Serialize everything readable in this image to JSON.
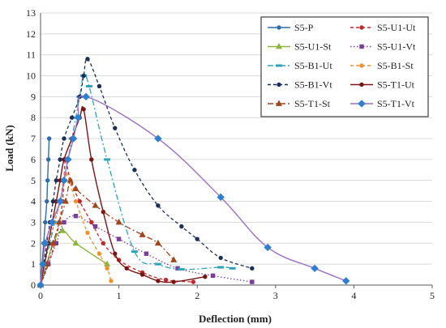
{
  "chart_data": {
    "type": "line",
    "xlabel": "Deflection (mm)",
    "ylabel": "Load (kN)",
    "xlim": [
      0,
      5
    ],
    "ylim": [
      0,
      13
    ],
    "x_ticks": [
      "0",
      "1",
      "2",
      "3",
      "4",
      "5"
    ],
    "y_ticks": [
      "0",
      "1",
      "2",
      "3",
      "4",
      "5",
      "6",
      "7",
      "8",
      "9",
      "10",
      "11",
      "12",
      "13"
    ],
    "grid": "horizontal",
    "legend_position": "top-right",
    "series": [
      {
        "name": "S5-P",
        "color": "#2e6ca6",
        "dash": "solid",
        "marker": "circle",
        "points": [
          [
            0,
            0
          ],
          [
            0.02,
            1
          ],
          [
            0.04,
            2
          ],
          [
            0.06,
            3
          ],
          [
            0.08,
            4
          ],
          [
            0.09,
            5
          ],
          [
            0.1,
            6
          ],
          [
            0.11,
            7
          ]
        ]
      },
      {
        "name": "S5-U1-Ut",
        "color": "#c0282a",
        "dash": "dash",
        "marker": "circle",
        "points": [
          [
            0,
            0
          ],
          [
            0.1,
            1
          ],
          [
            0.18,
            2
          ],
          [
            0.24,
            3
          ],
          [
            0.28,
            4
          ],
          [
            0.3,
            5
          ],
          [
            0.32,
            6
          ],
          [
            0.38,
            5
          ],
          [
            0.5,
            4
          ],
          [
            0.65,
            3
          ],
          [
            0.8,
            2
          ],
          [
            1.0,
            1.2
          ],
          [
            1.3,
            0.6
          ],
          [
            1.6,
            0.25
          ],
          [
            1.95,
            0.15
          ]
        ]
      },
      {
        "name": "S5-U1-St",
        "color": "#8db53c",
        "dash": "solid",
        "marker": "triangle",
        "points": [
          [
            0,
            0
          ],
          [
            0.08,
            1
          ],
          [
            0.16,
            2
          ],
          [
            0.28,
            2.6
          ],
          [
            0.45,
            2.0
          ],
          [
            0.85,
            1.0
          ]
        ]
      },
      {
        "name": "S5-U1-Vt",
        "color": "#7a3e98",
        "dash": "dot",
        "marker": "square",
        "points": [
          [
            0,
            0
          ],
          [
            0.1,
            1
          ],
          [
            0.2,
            2
          ],
          [
            0.3,
            3
          ],
          [
            0.45,
            3.3
          ],
          [
            0.7,
            2.8
          ],
          [
            1.0,
            2.2
          ],
          [
            1.35,
            1.5
          ],
          [
            1.75,
            0.8
          ],
          [
            2.2,
            0.45
          ],
          [
            2.7,
            0.15
          ]
        ]
      },
      {
        "name": "S5-B1-Ut",
        "color": "#2ea3b8",
        "dash": "dashdot",
        "marker": "dash",
        "points": [
          [
            0,
            0
          ],
          [
            0.05,
            1
          ],
          [
            0.12,
            2
          ],
          [
            0.18,
            3
          ],
          [
            0.25,
            4
          ],
          [
            0.3,
            5
          ],
          [
            0.35,
            6
          ],
          [
            0.4,
            7
          ],
          [
            0.45,
            8
          ],
          [
            0.5,
            9
          ],
          [
            0.55,
            10
          ],
          [
            0.62,
            9.5
          ],
          [
            0.85,
            6
          ],
          [
            1.2,
            1.6
          ],
          [
            1.5,
            1.0
          ],
          [
            1.8,
            0.75
          ],
          [
            2.3,
            0.85
          ],
          [
            2.45,
            0.8
          ]
        ]
      },
      {
        "name": "S5-B1-St",
        "color": "#f0912f",
        "dash": "dash",
        "marker": "circle",
        "points": [
          [
            0,
            0
          ],
          [
            0.05,
            1
          ],
          [
            0.1,
            2
          ],
          [
            0.18,
            3
          ],
          [
            0.25,
            4
          ],
          [
            0.32,
            5.3
          ],
          [
            0.45,
            4
          ],
          [
            0.6,
            2.5
          ],
          [
            0.75,
            1.5
          ],
          [
            0.85,
            0.8
          ],
          [
            0.9,
            0.2
          ]
        ]
      },
      {
        "name": "S5-B1-Vt",
        "color": "#1a2f5a",
        "dash": "dash",
        "marker": "circle",
        "points": [
          [
            0,
            0
          ],
          [
            0.04,
            1
          ],
          [
            0.08,
            2
          ],
          [
            0.12,
            3
          ],
          [
            0.16,
            4
          ],
          [
            0.2,
            5
          ],
          [
            0.25,
            6
          ],
          [
            0.3,
            7
          ],
          [
            0.4,
            8
          ],
          [
            0.5,
            9
          ],
          [
            0.55,
            10
          ],
          [
            0.6,
            10.8
          ],
          [
            0.75,
            9.5
          ],
          [
            0.95,
            7.5
          ],
          [
            1.2,
            5.5
          ],
          [
            1.5,
            3.8
          ],
          [
            1.8,
            2.8
          ],
          [
            2.0,
            2.2
          ],
          [
            2.3,
            1.3
          ],
          [
            2.7,
            0.8
          ]
        ]
      },
      {
        "name": "S5-T1-Ut",
        "color": "#7a1412",
        "dash": "solid",
        "marker": "circle",
        "points": [
          [
            0,
            0
          ],
          [
            0.05,
            1
          ],
          [
            0.1,
            2
          ],
          [
            0.15,
            3
          ],
          [
            0.2,
            4
          ],
          [
            0.25,
            5
          ],
          [
            0.3,
            6
          ],
          [
            0.4,
            7
          ],
          [
            0.5,
            8
          ],
          [
            0.55,
            8.4
          ],
          [
            0.65,
            6.0
          ],
          [
            0.8,
            3.5
          ],
          [
            0.95,
            1.5
          ],
          [
            1.1,
            0.8
          ],
          [
            1.3,
            0.5
          ],
          [
            1.5,
            0.2
          ],
          [
            1.7,
            0.15
          ],
          [
            2.1,
            0.4
          ]
        ]
      },
      {
        "name": "S5-T1-St",
        "color": "#a0461e",
        "dash": "dashdot",
        "marker": "triangle",
        "points": [
          [
            0,
            0
          ],
          [
            0.08,
            1
          ],
          [
            0.16,
            2
          ],
          [
            0.24,
            3
          ],
          [
            0.32,
            4
          ],
          [
            0.38,
            5
          ],
          [
            0.45,
            4.6
          ],
          [
            0.7,
            3.8
          ],
          [
            1.0,
            3.0
          ],
          [
            1.3,
            2.4
          ],
          [
            1.5,
            2.0
          ],
          [
            1.7,
            1.2
          ]
        ]
      },
      {
        "name": "S5-T1-Vt",
        "color": "#2e7fd1",
        "line_color": "#9b6fc7",
        "dash": "solid",
        "marker": "diamond",
        "points": [
          [
            0,
            0
          ],
          [
            0.03,
            1
          ],
          [
            0.06,
            2
          ],
          [
            0.15,
            3
          ],
          [
            0.25,
            4
          ],
          [
            0.3,
            5
          ],
          [
            0.35,
            6
          ],
          [
            0.42,
            7
          ],
          [
            0.48,
            8
          ],
          [
            0.58,
            9
          ],
          [
            1.5,
            7.0
          ],
          [
            2.3,
            4.2
          ],
          [
            2.9,
            1.8
          ],
          [
            3.5,
            0.8
          ],
          [
            3.9,
            0.2
          ]
        ]
      }
    ]
  }
}
